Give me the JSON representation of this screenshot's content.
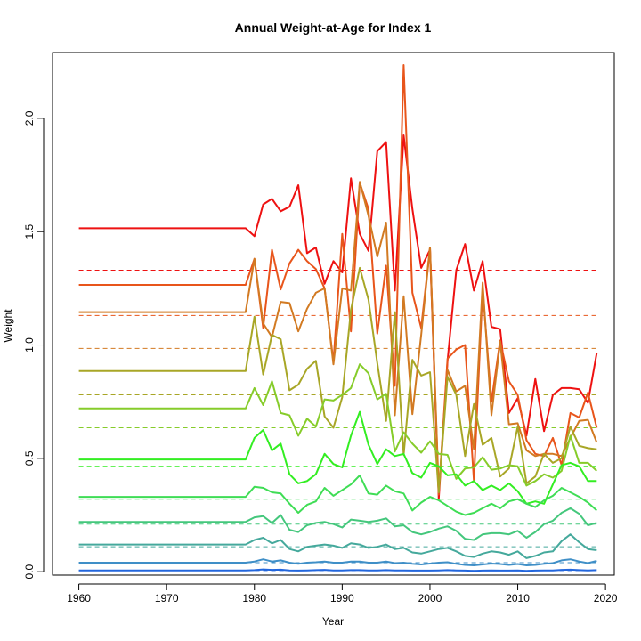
{
  "chart_data": {
    "type": "line",
    "title": "Annual Weight-at-Age for Index 1",
    "xlabel": "Year",
    "ylabel": "Weight",
    "xlim": [
      1957,
      2021
    ],
    "ylim": [
      -0.015,
      2.29
    ],
    "xticks": [
      1960,
      1970,
      1980,
      1990,
      2000,
      2010,
      2020
    ],
    "yticks": [
      0.0,
      0.5,
      1.0,
      1.5,
      2.0
    ],
    "ytick_labels": [
      "0.0",
      "0.5",
      "1.0",
      "1.5",
      "2.0"
    ],
    "grid": false,
    "legend": "none",
    "x": [
      1960,
      1961,
      1962,
      1963,
      1964,
      1965,
      1966,
      1967,
      1968,
      1969,
      1970,
      1971,
      1972,
      1973,
      1974,
      1975,
      1976,
      1977,
      1978,
      1979,
      1980,
      1981,
      1982,
      1983,
      1984,
      1985,
      1986,
      1987,
      1988,
      1989,
      1990,
      1991,
      1992,
      1993,
      1994,
      1995,
      1996,
      1997,
      1998,
      1999,
      2000,
      2001,
      2002,
      2003,
      2004,
      2005,
      2006,
      2007,
      2008,
      2009,
      2010,
      2011,
      2012,
      2013,
      2014,
      2015,
      2016,
      2017,
      2018,
      2019
    ],
    "series": [
      {
        "color": "#ee1111",
        "mean": 1.33,
        "base": 1.515,
        "values_from_1979": [
          1.515,
          1.48,
          1.62,
          1.645,
          1.59,
          1.61,
          1.705,
          1.405,
          1.43,
          1.27,
          1.37,
          1.32,
          1.735,
          1.49,
          1.415,
          1.855,
          1.895,
          1.24,
          1.925,
          1.6,
          1.34,
          1.42,
          0.32,
          0.93,
          1.33,
          1.445,
          1.24,
          1.37,
          1.08,
          1.07,
          0.7,
          0.765,
          0.6,
          0.85,
          0.62,
          0.78,
          0.81,
          0.81,
          0.805,
          0.745,
          0.965
        ]
      },
      {
        "color": "#e8551b",
        "mean": 1.13,
        "base": 1.265,
        "values_from_1979": [
          1.265,
          1.38,
          1.075,
          1.42,
          1.245,
          1.36,
          1.42,
          1.37,
          1.335,
          1.25,
          0.925,
          1.49,
          1.06,
          1.715,
          1.6,
          1.05,
          1.35,
          0.82,
          2.235,
          1.23,
          1.075,
          1.43,
          0.34,
          0.94,
          0.98,
          1.0,
          0.4,
          1.25,
          0.75,
          1.02,
          0.84,
          0.78,
          0.58,
          0.52,
          0.51,
          0.59,
          0.47,
          0.7,
          0.68,
          0.79,
          0.635,
          0.635
        ]
      },
      {
        "color": "#d27a22",
        "mean": 0.985,
        "base": 1.145,
        "values_from_1979": [
          1.145,
          1.38,
          1.095,
          1.035,
          1.19,
          1.185,
          1.06,
          1.16,
          1.23,
          1.25,
          0.915,
          1.25,
          1.24,
          1.72,
          1.57,
          1.39,
          1.54,
          0.69,
          1.215,
          0.695,
          1.045,
          1.43,
          0.36,
          0.89,
          0.795,
          0.82,
          0.54,
          1.275,
          0.69,
          1.015,
          0.65,
          0.655,
          0.535,
          0.51,
          0.52,
          0.52,
          0.51,
          0.59,
          0.665,
          0.67,
          0.57,
          0.585
        ]
      },
      {
        "color": "#a8a626",
        "mean": 0.78,
        "base": 0.885,
        "values_from_1979": [
          0.885,
          1.125,
          0.87,
          1.045,
          1.025,
          0.8,
          0.825,
          0.895,
          0.93,
          0.685,
          0.635,
          0.77,
          1.155,
          1.34,
          1.2,
          0.92,
          0.665,
          1.145,
          0.515,
          0.935,
          0.865,
          0.88,
          0.35,
          0.86,
          0.78,
          0.51,
          0.74,
          0.56,
          0.59,
          0.42,
          0.455,
          0.64,
          0.39,
          0.42,
          0.52,
          0.48,
          0.5,
          0.64,
          0.555,
          0.545,
          0.54
        ]
      },
      {
        "color": "#86cc2a",
        "mean": 0.635,
        "base": 0.72,
        "values_from_1979": [
          0.72,
          0.81,
          0.735,
          0.84,
          0.7,
          0.69,
          0.6,
          0.675,
          0.64,
          0.76,
          0.755,
          0.78,
          0.81,
          0.915,
          0.875,
          0.76,
          0.785,
          0.53,
          0.615,
          0.565,
          0.525,
          0.575,
          0.52,
          0.515,
          0.41,
          0.455,
          0.46,
          0.505,
          0.45,
          0.455,
          0.47,
          0.465,
          0.38,
          0.4,
          0.43,
          0.415,
          0.445,
          0.6,
          0.48,
          0.48,
          0.445
        ]
      },
      {
        "color": "#33ee22",
        "mean": 0.465,
        "base": 0.495,
        "values_from_1979": [
          0.495,
          0.59,
          0.625,
          0.535,
          0.565,
          0.43,
          0.39,
          0.4,
          0.43,
          0.52,
          0.475,
          0.46,
          0.6,
          0.705,
          0.56,
          0.475,
          0.54,
          0.51,
          0.52,
          0.435,
          0.415,
          0.48,
          0.465,
          0.425,
          0.43,
          0.38,
          0.4,
          0.36,
          0.38,
          0.36,
          0.39,
          0.355,
          0.3,
          0.31,
          0.3,
          0.385,
          0.47,
          0.48,
          0.465,
          0.4,
          0.4
        ]
      },
      {
        "color": "#3fdd55",
        "mean": 0.32,
        "base": 0.33,
        "values_from_1979": [
          0.33,
          0.375,
          0.37,
          0.35,
          0.345,
          0.3,
          0.26,
          0.295,
          0.31,
          0.37,
          0.335,
          0.36,
          0.385,
          0.425,
          0.345,
          0.34,
          0.38,
          0.355,
          0.345,
          0.27,
          0.305,
          0.33,
          0.315,
          0.29,
          0.265,
          0.25,
          0.26,
          0.28,
          0.3,
          0.28,
          0.31,
          0.32,
          0.3,
          0.285,
          0.315,
          0.335,
          0.37,
          0.35,
          0.33,
          0.305,
          0.27
        ]
      },
      {
        "color": "#44c77c",
        "mean": 0.21,
        "base": 0.22,
        "values_from_1979": [
          0.22,
          0.24,
          0.245,
          0.215,
          0.25,
          0.185,
          0.175,
          0.205,
          0.215,
          0.22,
          0.21,
          0.195,
          0.23,
          0.225,
          0.22,
          0.225,
          0.235,
          0.2,
          0.205,
          0.175,
          0.165,
          0.175,
          0.19,
          0.2,
          0.18,
          0.145,
          0.14,
          0.165,
          0.17,
          0.17,
          0.165,
          0.18,
          0.15,
          0.175,
          0.21,
          0.225,
          0.26,
          0.28,
          0.255,
          0.205,
          0.215
        ]
      },
      {
        "color": "#45a99c",
        "mean": 0.11,
        "base": 0.12,
        "values_from_1979": [
          0.12,
          0.14,
          0.15,
          0.125,
          0.14,
          0.1,
          0.09,
          0.11,
          0.115,
          0.12,
          0.115,
          0.105,
          0.125,
          0.12,
          0.105,
          0.11,
          0.12,
          0.1,
          0.105,
          0.085,
          0.08,
          0.09,
          0.1,
          0.105,
          0.09,
          0.07,
          0.065,
          0.08,
          0.09,
          0.085,
          0.075,
          0.09,
          0.06,
          0.07,
          0.085,
          0.09,
          0.135,
          0.165,
          0.13,
          0.1,
          0.095
        ]
      },
      {
        "color": "#3f8fc7",
        "mean": 0.04,
        "base": 0.04,
        "values_from_1979": [
          0.04,
          0.045,
          0.055,
          0.045,
          0.05,
          0.04,
          0.035,
          0.04,
          0.042,
          0.045,
          0.04,
          0.04,
          0.045,
          0.045,
          0.04,
          0.04,
          0.045,
          0.038,
          0.04,
          0.035,
          0.032,
          0.036,
          0.04,
          0.042,
          0.035,
          0.03,
          0.028,
          0.032,
          0.036,
          0.034,
          0.03,
          0.034,
          0.028,
          0.03,
          0.035,
          0.038,
          0.05,
          0.055,
          0.045,
          0.038,
          0.048
        ]
      },
      {
        "color": "#2266dd",
        "mean": 0.005,
        "base": 0.006,
        "values_from_1979": [
          0.006,
          0.007,
          0.01,
          0.008,
          0.009,
          0.006,
          0.005,
          0.006,
          0.007,
          0.008,
          0.006,
          0.006,
          0.007,
          0.007,
          0.006,
          0.006,
          0.007,
          0.006,
          0.006,
          0.005,
          0.005,
          0.005,
          0.006,
          0.007,
          0.006,
          0.005,
          0.004,
          0.005,
          0.006,
          0.005,
          0.005,
          0.006,
          0.004,
          0.005,
          0.006,
          0.006,
          0.008,
          0.009,
          0.007,
          0.006,
          0.007
        ]
      }
    ]
  }
}
